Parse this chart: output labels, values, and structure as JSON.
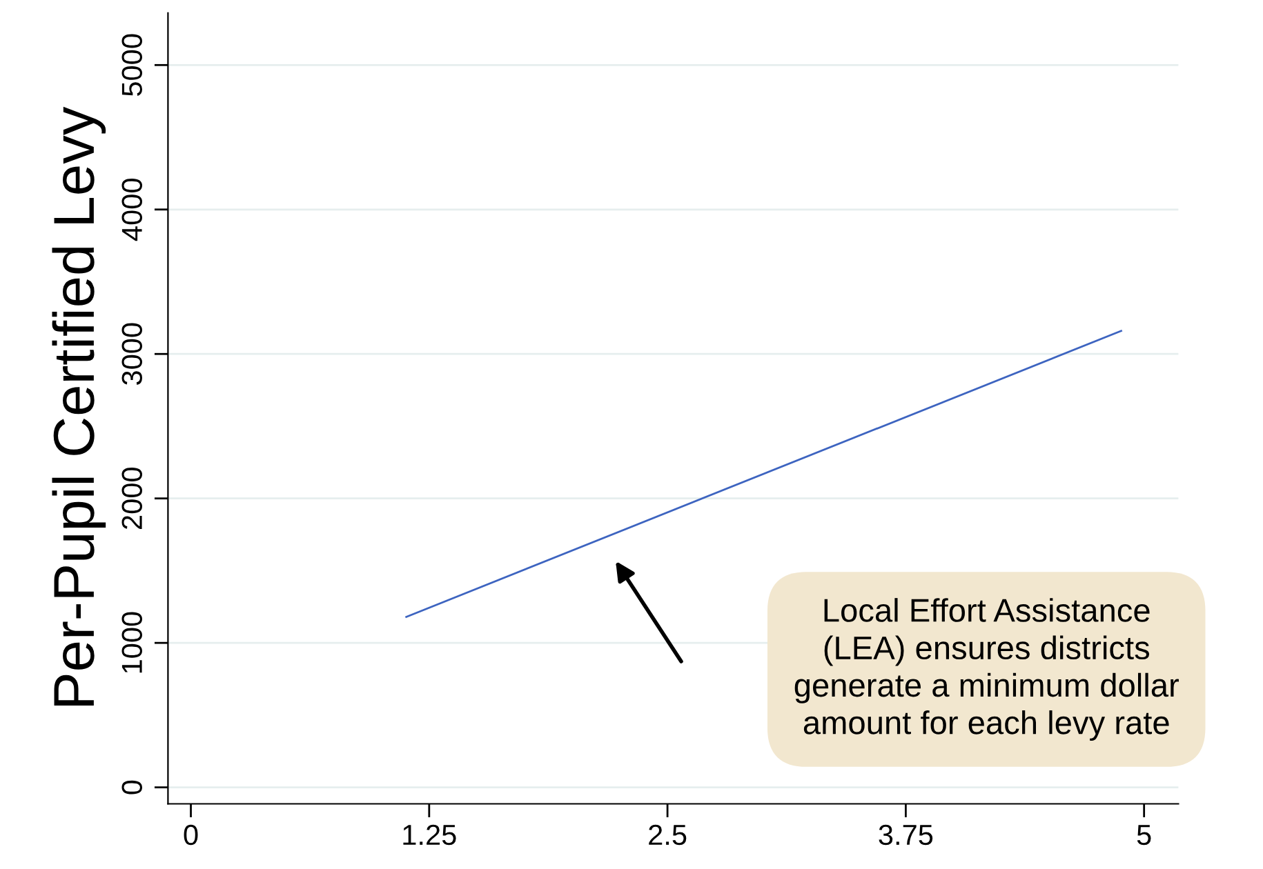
{
  "chart_data": {
    "type": "line",
    "ylabel": "Per-Pupil Certified Levy",
    "series": [
      {
        "color": "#3d64c0",
        "x": [
          1.13,
          4.88
        ],
        "values": [
          1180,
          3160
        ]
      }
    ],
    "xlim": [
      -0.12,
      5.18
    ],
    "xticks": [
      0,
      1.25,
      2.5,
      3.75,
      5
    ],
    "ylim": [
      -114,
      5360
    ],
    "yticks": [
      0,
      1000,
      2000,
      3000,
      4000,
      5000
    ],
    "grid": "y",
    "line_style": "solid",
    "marker": "none",
    "annotations": [
      "Local Effort Assistance\n(LEA) ensures districts\ngenerate a minimum dollar\namount for each levy rate"
    ]
  }
}
